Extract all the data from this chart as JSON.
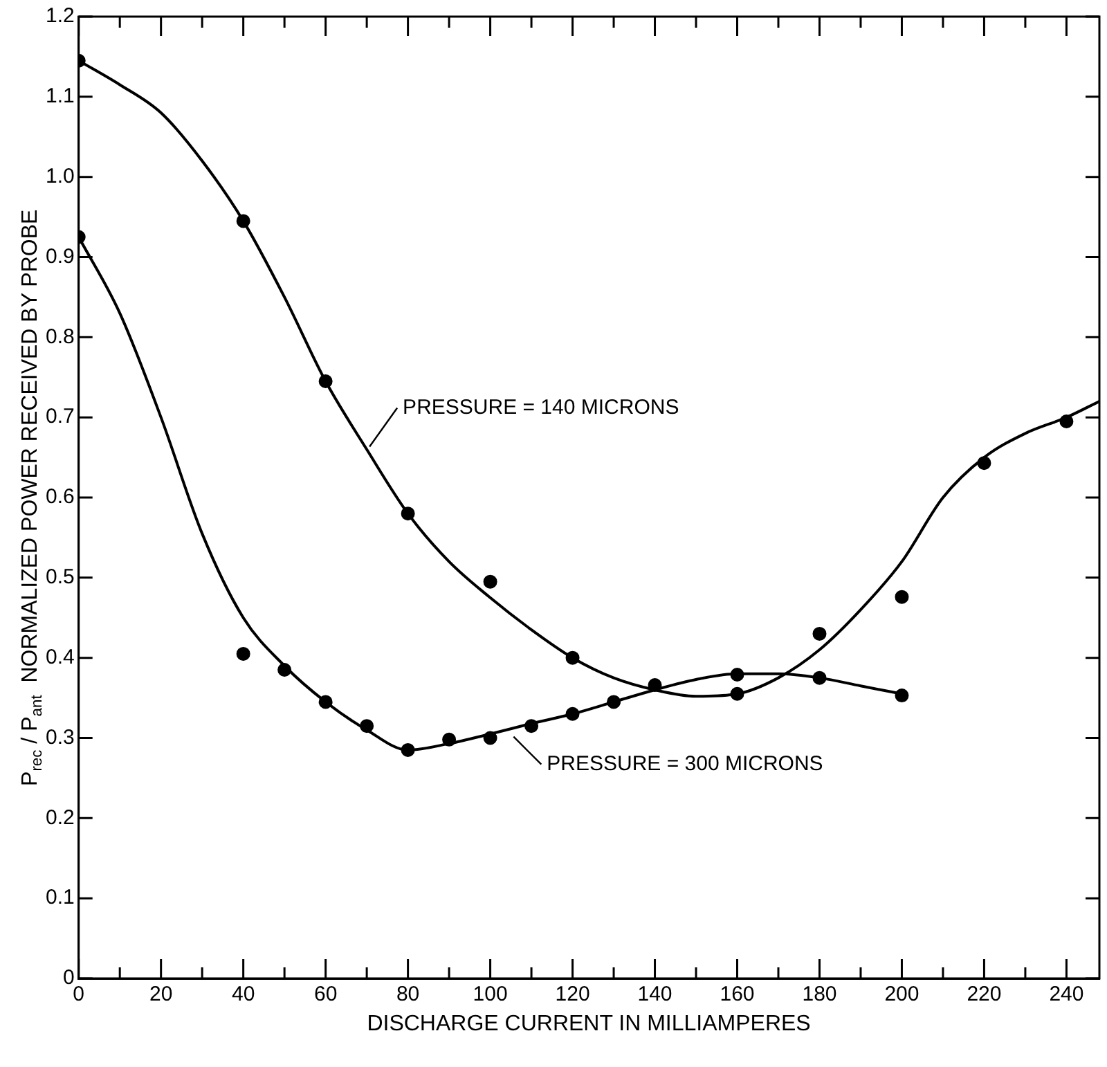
{
  "chart_data": {
    "type": "scatter",
    "xlabel": "DISCHARGE CURRENT IN MILLIAMPERES",
    "ylabel": "P$_{rec}$ / P$_{ant}$  NORMALIZED POWER RECEIVED BY PROBE",
    "xlim": [
      0,
      248
    ],
    "ylim": [
      0,
      1.2
    ],
    "xticks": [
      0,
      {
        "value": 10,
        "label": null
      },
      20,
      {
        "value": 30,
        "label": null
      },
      40,
      {
        "value": 50,
        "label": null
      },
      60,
      {
        "value": 70,
        "label": null
      },
      80,
      {
        "value": 90,
        "label": null
      },
      100,
      {
        "value": 110,
        "label": null
      },
      120,
      {
        "value": 130,
        "label": null
      },
      140,
      {
        "value": 150,
        "label": null
      },
      160,
      {
        "value": 170,
        "label": null
      },
      180,
      {
        "value": 190,
        "label": null
      },
      200,
      {
        "value": 210,
        "label": null
      },
      220,
      {
        "value": 230,
        "label": null
      },
      240
    ],
    "yticks": [
      0,
      0.1,
      0.2,
      0.3,
      0.4,
      0.5,
      0.6,
      0.7,
      0.8,
      0.9,
      {
        "value": 1,
        "label": "1.0"
      },
      1.1,
      1.2
    ],
    "grid": false,
    "legend": false,
    "marker": "circle",
    "series": [
      {
        "color": "#000000",
        "x": [
          0,
          40,
          60,
          80,
          100,
          120,
          160,
          180,
          200,
          220,
          240
        ],
        "values": [
          1.145,
          0.945,
          0.745,
          0.58,
          0.495,
          0.4,
          0.355,
          0.43,
          0.476,
          0.643,
          0.695
        ]
      },
      {
        "type": "line",
        "color": "#000000",
        "marker": "none",
        "x": [
          0,
          10,
          20,
          30,
          40,
          50,
          60,
          70,
          80,
          90,
          100,
          110,
          120,
          130,
          140,
          150,
          160,
          170,
          180,
          190,
          200,
          210,
          220,
          230,
          240,
          248
        ],
        "values": [
          1.145,
          1.115,
          1.08,
          1.02,
          0.945,
          0.85,
          0.745,
          0.66,
          0.58,
          0.52,
          0.475,
          0.435,
          0.4,
          0.375,
          0.36,
          0.352,
          0.355,
          0.375,
          0.41,
          0.46,
          0.52,
          0.6,
          0.65,
          0.68,
          0.7,
          0.72
        ]
      },
      {
        "color": "#000000",
        "x": [
          0,
          40,
          50,
          60,
          70,
          80,
          90,
          100,
          110,
          120,
          130,
          140,
          160,
          180,
          200
        ],
        "values": [
          0.925,
          0.405,
          0.385,
          0.345,
          0.315,
          0.285,
          0.298,
          0.3,
          0.315,
          0.33,
          0.345,
          0.366,
          0.379,
          0.375,
          0.353
        ]
      },
      {
        "type": "line",
        "color": "#000000",
        "marker": "none",
        "x": [
          0,
          10,
          20,
          30,
          40,
          50,
          60,
          70,
          80,
          90,
          100,
          110,
          120,
          130,
          140,
          150,
          160,
          170,
          180,
          190,
          200
        ],
        "values": [
          0.925,
          0.83,
          0.7,
          0.555,
          0.45,
          0.39,
          0.345,
          0.31,
          0.285,
          0.293,
          0.305,
          0.318,
          0.33,
          0.345,
          0.36,
          0.373,
          0.38,
          0.38,
          0.375,
          0.365,
          0.355
        ]
      }
    ],
    "annotations": [
      {
        "text": "PRESSURE = 140 MICRONS",
        "x": 70,
        "y": 0.66
      },
      {
        "text": "PRESSURE = 300 MICRONS",
        "x": 105,
        "y": 0.305
      }
    ]
  }
}
